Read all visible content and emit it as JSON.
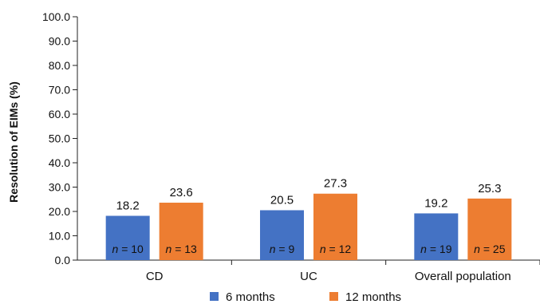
{
  "chart_data": {
    "type": "bar",
    "ylabel": "Resolution of EIMs (%)",
    "ylim": [
      0,
      100
    ],
    "yticks": [
      "0.0",
      "10.0",
      "20.0",
      "30.0",
      "40.0",
      "50.0",
      "60.0",
      "70.0",
      "80.0",
      "90.0",
      "100.0"
    ],
    "grid": false,
    "legend_position": "bottom",
    "categories": [
      "CD",
      "UC",
      "Overall population"
    ],
    "series": [
      {
        "name": "6 months",
        "color": "#4472c4",
        "values": [
          18.2,
          20.5,
          19.2
        ],
        "value_labels": [
          "18.2",
          "20.5",
          "19.2"
        ],
        "n_labels": [
          "= 10",
          "= 9",
          "= 19"
        ]
      },
      {
        "name": "12 months",
        "color": "#ed7d31",
        "values": [
          23.6,
          27.3,
          25.3
        ],
        "value_labels": [
          "23.6",
          "27.3",
          "25.3"
        ],
        "n_labels": [
          "= 13",
          "= 12",
          "= 25"
        ]
      }
    ],
    "n_symbol": "n"
  }
}
